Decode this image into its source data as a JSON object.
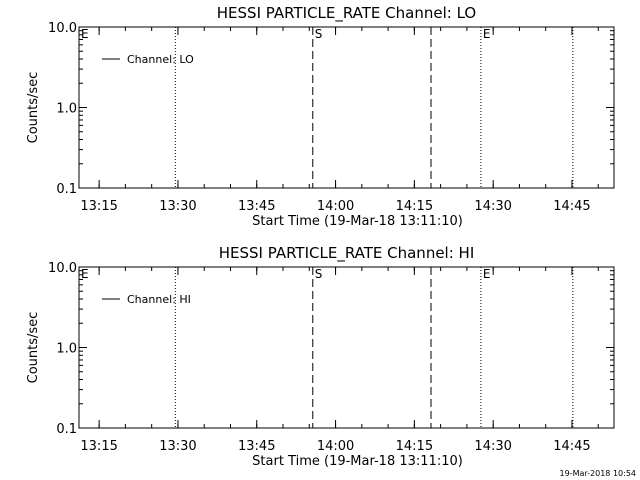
{
  "footer_timestamp": "19-Mar-2018 10:54",
  "chart_data": [
    {
      "type": "line",
      "title": "HESSI PARTICLE_RATE Channel: LO",
      "xlabel": "Start Time (19-Mar-18 13:11:10)",
      "ylabel": "Counts/sec",
      "y_scale": "log",
      "ylim": [
        0.1,
        10.0
      ],
      "xlim": [
        "13:11:10",
        "14:53:00"
      ],
      "x_ticks": [
        "13:15",
        "13:30",
        "13:45",
        "14:00",
        "14:15",
        "14:30",
        "14:45"
      ],
      "y_ticks": [
        "0.1",
        "1.0",
        "10.0"
      ],
      "legend": {
        "position": "top-left",
        "label": "Channel: LO"
      },
      "series": [
        {
          "name": "Channel: LO",
          "values": []
        }
      ],
      "markers": [
        {
          "time": "13:29:30",
          "style": "dotted",
          "label": ""
        },
        {
          "time": "13:55:40",
          "style": "dashed",
          "label": "S"
        },
        {
          "time": "14:18:10",
          "style": "dashed",
          "label": ""
        },
        {
          "time": "14:27:40",
          "style": "dotted",
          "label": "E"
        },
        {
          "time": "14:45:10",
          "style": "dotted",
          "label": ""
        }
      ],
      "corner_label": "E"
    },
    {
      "type": "line",
      "title": "HESSI PARTICLE_RATE Channel: HI",
      "xlabel": "Start Time (19-Mar-18 13:11:10)",
      "ylabel": "Counts/sec",
      "y_scale": "log",
      "ylim": [
        0.1,
        10.0
      ],
      "xlim": [
        "13:11:10",
        "14:53:00"
      ],
      "x_ticks": [
        "13:15",
        "13:30",
        "13:45",
        "14:00",
        "14:15",
        "14:30",
        "14:45"
      ],
      "y_ticks": [
        "0.1",
        "1.0",
        "10.0"
      ],
      "legend": {
        "position": "top-left",
        "label": "Channel: HI"
      },
      "series": [
        {
          "name": "Channel: HI",
          "values": []
        }
      ],
      "markers": [
        {
          "time": "13:29:30",
          "style": "dotted",
          "label": ""
        },
        {
          "time": "13:55:40",
          "style": "dashed",
          "label": "S"
        },
        {
          "time": "14:18:10",
          "style": "dashed",
          "label": ""
        },
        {
          "time": "14:27:40",
          "style": "dotted",
          "label": "E"
        },
        {
          "time": "14:45:10",
          "style": "dotted",
          "label": ""
        }
      ],
      "corner_label": "E"
    }
  ]
}
